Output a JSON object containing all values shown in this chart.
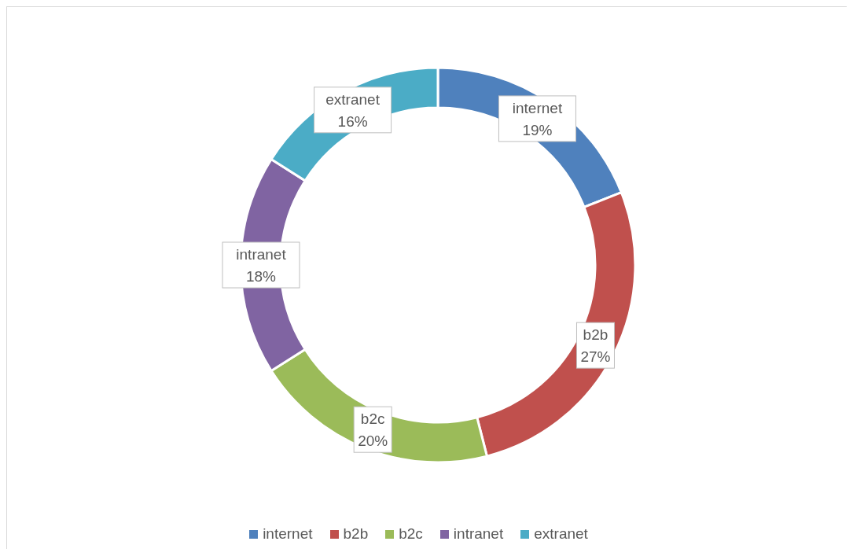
{
  "chart_data": {
    "type": "donut",
    "categories": [
      "internet",
      "b2b",
      "b2c",
      "intranet",
      "extranet"
    ],
    "values": [
      19,
      27,
      20,
      18,
      16
    ],
    "value_labels": [
      "19%",
      "27%",
      "20%",
      "18%",
      "16%"
    ],
    "colors": [
      "#4f81bd",
      "#c0504d",
      "#9bbb59",
      "#8064a2",
      "#4bacc6"
    ],
    "legend": "bottom"
  }
}
